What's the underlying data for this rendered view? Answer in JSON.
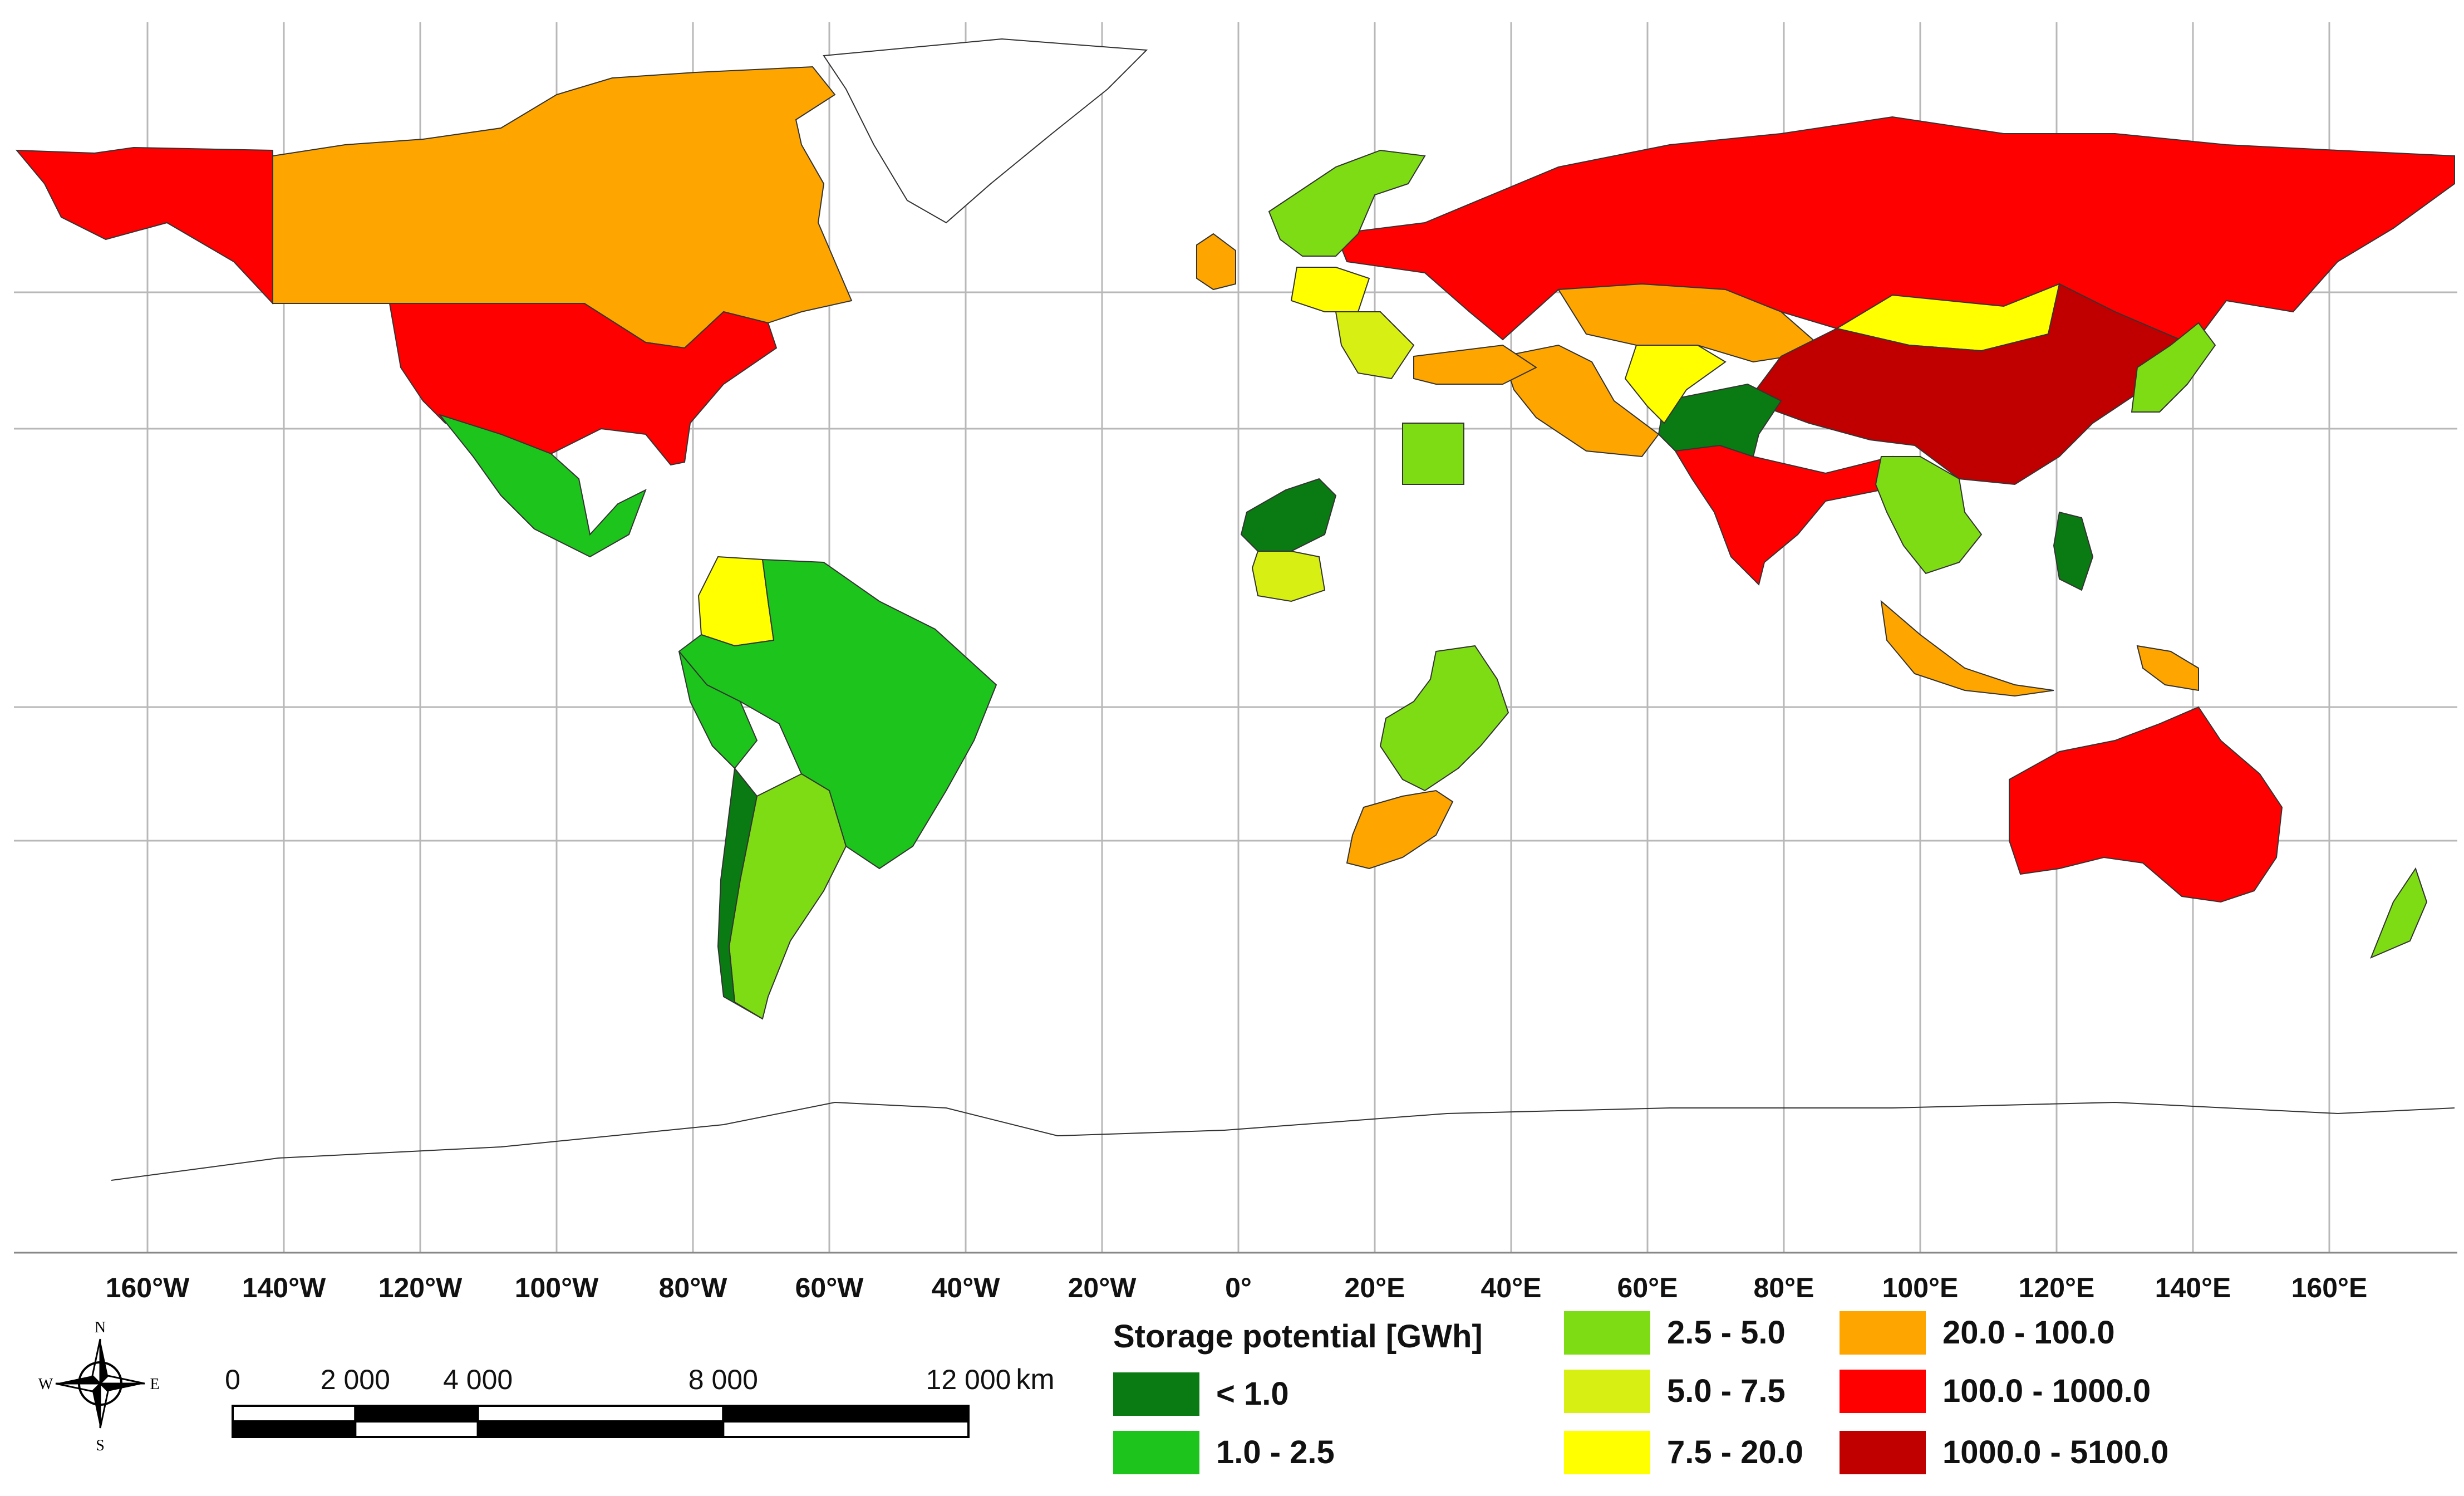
{
  "map": {
    "lon_ticks": [
      "160°W",
      "140°W",
      "120°W",
      "100°W",
      "80°W",
      "60°W",
      "40°W",
      "20°W",
      "0°",
      "20°E",
      "40°E",
      "60°E",
      "80°E",
      "100°E",
      "120°E",
      "140°E",
      "160°E"
    ],
    "lon_values": [
      -160,
      -140,
      -120,
      -100,
      -80,
      -60,
      -40,
      -20,
      0,
      20,
      40,
      60,
      80,
      100,
      120,
      140,
      160
    ]
  },
  "legend": {
    "title": "Storage potential [GWh]",
    "classes": [
      {
        "label": "< 1.0",
        "color": "#0a7a12"
      },
      {
        "label": "1.0 - 2.5",
        "color": "#1cc41c"
      },
      {
        "label": "2.5 - 5.0",
        "color": "#7edc14"
      },
      {
        "label": "5.0 - 7.5",
        "color": "#d8ef14"
      },
      {
        "label": "7.5 - 20.0",
        "color": "#ffff00"
      },
      {
        "label": "20.0 - 100.0",
        "color": "#ffa500"
      },
      {
        "label": "100.0 - 1000.0",
        "color": "#ff0000"
      },
      {
        "label": "1000.0 - 5100.0",
        "color": "#c00000"
      }
    ]
  },
  "compass": {
    "n": "N",
    "s": "S",
    "e": "E",
    "w": "W"
  },
  "scalebar": {
    "labels": [
      "0",
      "2 000",
      "4 000",
      "8 000",
      "12 000"
    ],
    "values": [
      0,
      2000,
      4000,
      8000,
      12000
    ],
    "unit": "km"
  },
  "regions": [
    {
      "name": "canada",
      "cls": 5
    },
    {
      "name": "greenland",
      "cls": -1
    },
    {
      "name": "alaska",
      "cls": 6
    },
    {
      "name": "usa",
      "cls": 6
    },
    {
      "name": "mexico",
      "cls": 1
    },
    {
      "name": "colombia",
      "cls": 4
    },
    {
      "name": "venezuela-brazil",
      "cls": 1
    },
    {
      "name": "peru",
      "cls": 1
    },
    {
      "name": "argentina",
      "cls": 2
    },
    {
      "name": "chile",
      "cls": 0
    },
    {
      "name": "russia",
      "cls": 6
    },
    {
      "name": "kazakhstan",
      "cls": 5
    },
    {
      "name": "mongolia",
      "cls": 4
    },
    {
      "name": "china",
      "cls": 7
    },
    {
      "name": "india",
      "cls": 6
    },
    {
      "name": "pakistan",
      "cls": 0
    },
    {
      "name": "iran",
      "cls": 5
    },
    {
      "name": "afghanistan",
      "cls": 4
    },
    {
      "name": "turkey",
      "cls": 5
    },
    {
      "name": "egypt",
      "cls": 2
    },
    {
      "name": "niger",
      "cls": 0
    },
    {
      "name": "nigeria",
      "cls": 3
    },
    {
      "name": "southern-africa",
      "cls": 2
    },
    {
      "name": "south-africa",
      "cls": 5
    },
    {
      "name": "southeast-asia",
      "cls": 2
    },
    {
      "name": "indonesia",
      "cls": 5
    },
    {
      "name": "australia",
      "cls": 6
    },
    {
      "name": "japan",
      "cls": 2
    },
    {
      "name": "scandinavia",
      "cls": 2
    },
    {
      "name": "uk",
      "cls": 5
    },
    {
      "name": "ukraine",
      "cls": 4
    },
    {
      "name": "balkans",
      "cls": 3
    },
    {
      "name": "new-zealand",
      "cls": 2
    },
    {
      "name": "philippines",
      "cls": 0
    },
    {
      "name": "new-guinea",
      "cls": 5
    },
    {
      "name": "antarctica",
      "cls": -1
    }
  ]
}
